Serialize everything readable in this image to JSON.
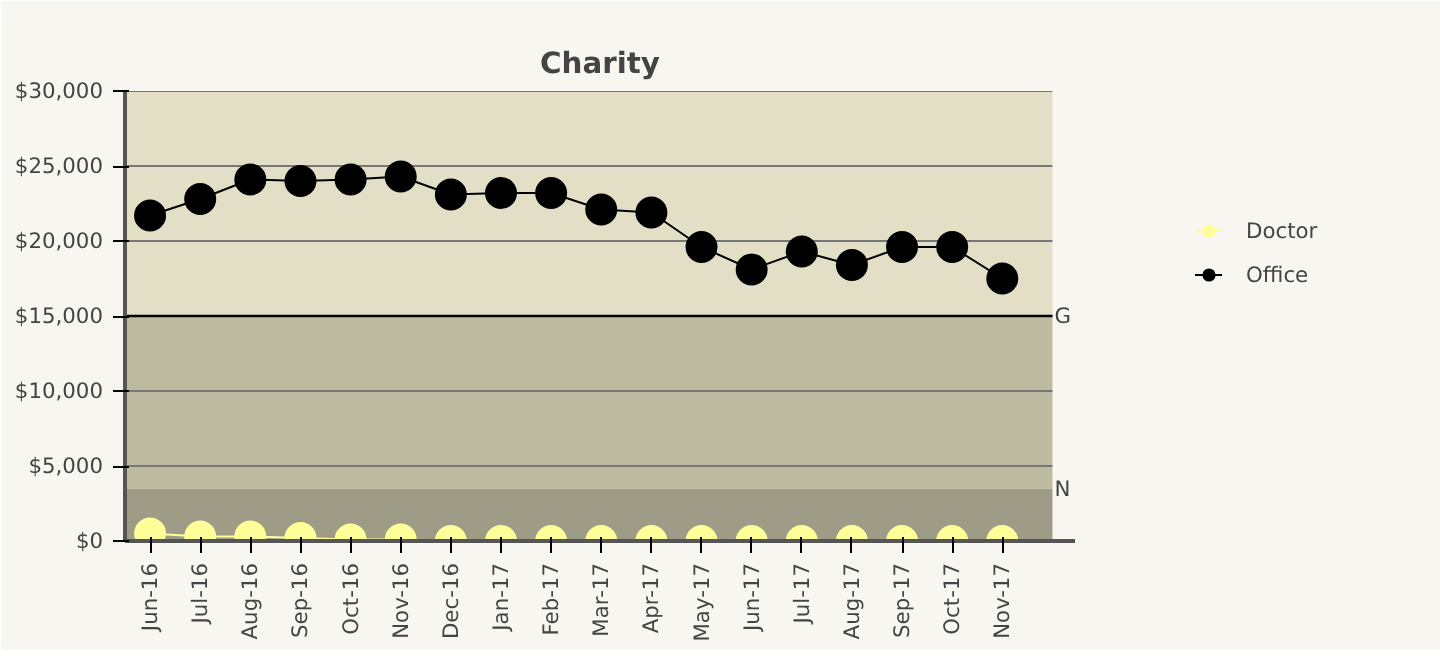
{
  "chart_data": {
    "type": "line",
    "title": "Charity",
    "categories": [
      "Jun-16",
      "Jul-16",
      "Aug-16",
      "Sep-16",
      "Oct-16",
      "Nov-16",
      "Dec-16",
      "Jan-17",
      "Feb-17",
      "Mar-17",
      "Apr-17",
      "May-17",
      "Jun-17",
      "Jul-17",
      "Aug-17",
      "Sep-17",
      "Oct-17",
      "Nov-17"
    ],
    "series": [
      {
        "name": "Doctor",
        "color": "#ffff99",
        "values": [
          500,
          300,
          300,
          200,
          100,
          100,
          0,
          0,
          0,
          0,
          0,
          0,
          0,
          0,
          0,
          0,
          0,
          0
        ]
      },
      {
        "name": "Office",
        "color": "#000000",
        "values": [
          21700,
          22800,
          24100,
          24000,
          24100,
          24300,
          23100,
          23200,
          23200,
          22100,
          21900,
          19600,
          18100,
          19300,
          18400,
          19600,
          19600,
          17500
        ]
      }
    ],
    "ylim": [
      0,
      30000
    ],
    "yticks": [
      {
        "value": 0,
        "label": "$0"
      },
      {
        "value": 5000,
        "label": "$5,000"
      },
      {
        "value": 10000,
        "label": "$10,000"
      },
      {
        "value": 15000,
        "label": "$15,000"
      },
      {
        "value": 20000,
        "label": "$20,000"
      },
      {
        "value": 25000,
        "label": "$25,000"
      },
      {
        "value": 30000,
        "label": "$30,000"
      }
    ],
    "bands": [
      {
        "axis": "y",
        "from": 0,
        "to": 3500,
        "label": "N",
        "color": "#9e9b86"
      },
      {
        "axis": "y",
        "from": 3500,
        "to": 15000,
        "color": "#bcbb9f"
      },
      {
        "axis": "y",
        "from": 15000,
        "to": 30000,
        "color": "#e2dfc6"
      }
    ],
    "ref_lines": [
      {
        "axis": "y",
        "value": 15000,
        "label": "G",
        "color": "#000000"
      }
    ],
    "grid": "y",
    "legend": "right",
    "marker": "circle",
    "line_style": "solid"
  }
}
